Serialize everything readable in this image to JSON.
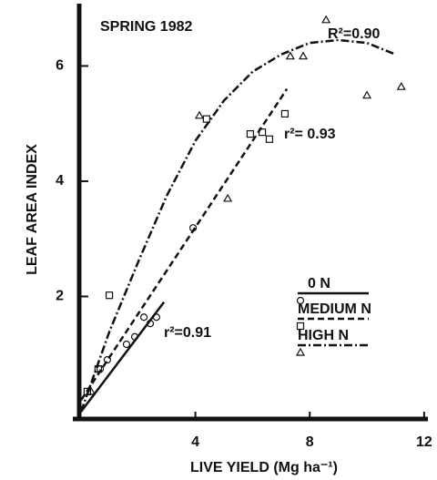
{
  "chart_data": {
    "type": "scatter",
    "title": "SPRING 1982",
    "xlabel": "LIVE YIELD  (Mg ha⁻¹)",
    "ylabel": "LEAF AREA INDEX",
    "xlim": [
      0,
      12.1
    ],
    "ylim": [
      0,
      7.05
    ],
    "xticks": [
      4,
      8,
      12
    ],
    "yticks": [
      2,
      4,
      6
    ],
    "series": [
      {
        "name": "0 N",
        "marker": "circle",
        "dash": "solid",
        "color": "#111",
        "x": [
          0.67,
          0.92,
          1.59,
          1.88,
          2.2,
          2.42,
          2.64,
          3.92
        ],
        "values": [
          0.74,
          0.9,
          1.17,
          1.3,
          1.64,
          1.53,
          1.64,
          3.19
        ],
        "fit": {
          "x": [
            0,
            2.9
          ],
          "values": [
            0,
            1.9
          ]
        },
        "fit_label": "r²=0.91"
      },
      {
        "name": "MEDIUM N",
        "marker": "square",
        "dash": "dashed",
        "color": "#111",
        "x": [
          0.22,
          0.6,
          0.99,
          4.39,
          5.92,
          6.34,
          6.59,
          7.13
        ],
        "values": [
          0.35,
          0.74,
          2.02,
          5.08,
          4.82,
          4.85,
          4.73,
          5.17
        ],
        "fit": {
          "x": [
            0,
            7.2
          ],
          "values": [
            0.2,
            5.6
          ]
        },
        "fit_label": "r²= 0.93"
      },
      {
        "name": "HIGH N",
        "marker": "triangle",
        "dash": "dashdot",
        "color": "#111",
        "x": [
          0.35,
          4.14,
          5.13,
          7.32,
          7.77,
          8.57,
          10.0,
          11.2
        ],
        "values": [
          0.35,
          5.14,
          3.7,
          6.17,
          6.17,
          6.8,
          5.49,
          5.64
        ],
        "fit": {
          "x": [
            0,
            1,
            2,
            3,
            4,
            5,
            6,
            7,
            8,
            9,
            10,
            11
          ],
          "values": [
            0,
            1.4,
            2.6,
            3.75,
            4.7,
            5.4,
            5.9,
            6.2,
            6.4,
            6.45,
            6.4,
            6.2
          ]
        },
        "fit_label": "R²=0.90"
      }
    ]
  }
}
